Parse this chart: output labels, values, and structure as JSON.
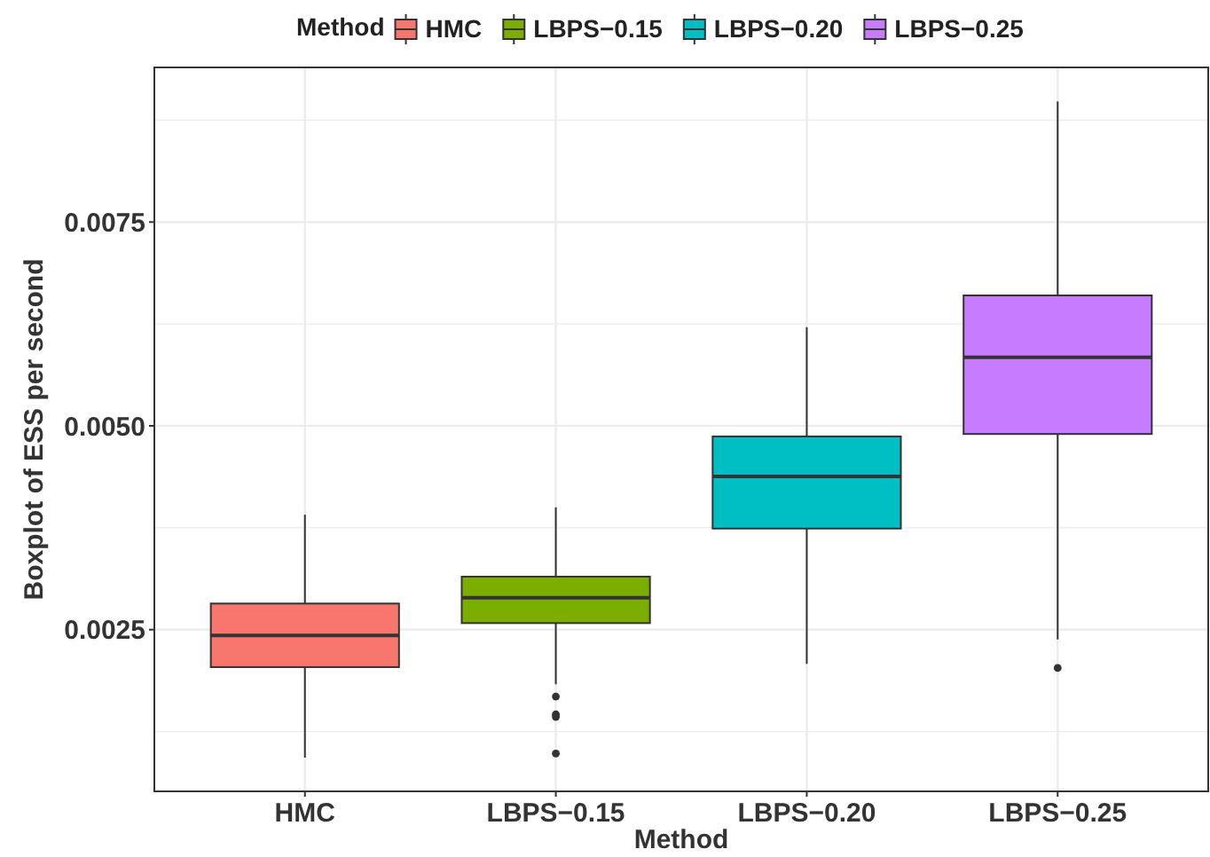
{
  "chart_data": {
    "type": "box",
    "xlabel": "Method",
    "ylabel": "Boxplot of ESS per second",
    "legend_title": "Method",
    "legend": "top",
    "grid": true,
    "categories": [
      "HMC",
      "LBPS−0.15",
      "LBPS−0.20",
      "LBPS−0.25"
    ],
    "series": [
      {
        "name": "HMC",
        "color": "#f8766d",
        "x": [
          "HMC"
        ],
        "boxes": [
          {
            "low": 0.00093,
            "q1": 0.00204,
            "median": 0.00243,
            "q3": 0.00282,
            "high": 0.00391
          }
        ]
      },
      {
        "name": "LBPS−0.15",
        "color": "#7cae00",
        "x": [
          "LBPS−0.15"
        ],
        "boxes": [
          {
            "low": 0.00183,
            "q1": 0.00258,
            "median": 0.00289,
            "q3": 0.00315,
            "high": 0.004,
            "outliers": [
              0.00168,
              0.00146,
              0.00143,
              0.00098
            ]
          }
        ]
      },
      {
        "name": "LBPS−0.20",
        "color": "#00bfc4",
        "x": [
          "LBPS−0.20"
        ],
        "boxes": [
          {
            "low": 0.00208,
            "q1": 0.00374,
            "median": 0.00438,
            "q3": 0.00487,
            "high": 0.00621
          }
        ]
      },
      {
        "name": "LBPS−0.25",
        "color": "#c77cff",
        "x": [
          "LBPS−0.25"
        ],
        "boxes": [
          {
            "low": 0.00238,
            "q1": 0.0049,
            "median": 0.00584,
            "q3": 0.0066,
            "high": 0.00898,
            "outliers": [
              0.00203
            ]
          }
        ]
      }
    ],
    "ylim": [
      0.000516,
      0.009397
    ],
    "yticks": [
      {
        "value": 0.0025,
        "label": "0.0025"
      },
      {
        "value": 0.005,
        "label": "0.0050"
      },
      {
        "value": 0.0075,
        "label": "0.0075"
      }
    ]
  }
}
